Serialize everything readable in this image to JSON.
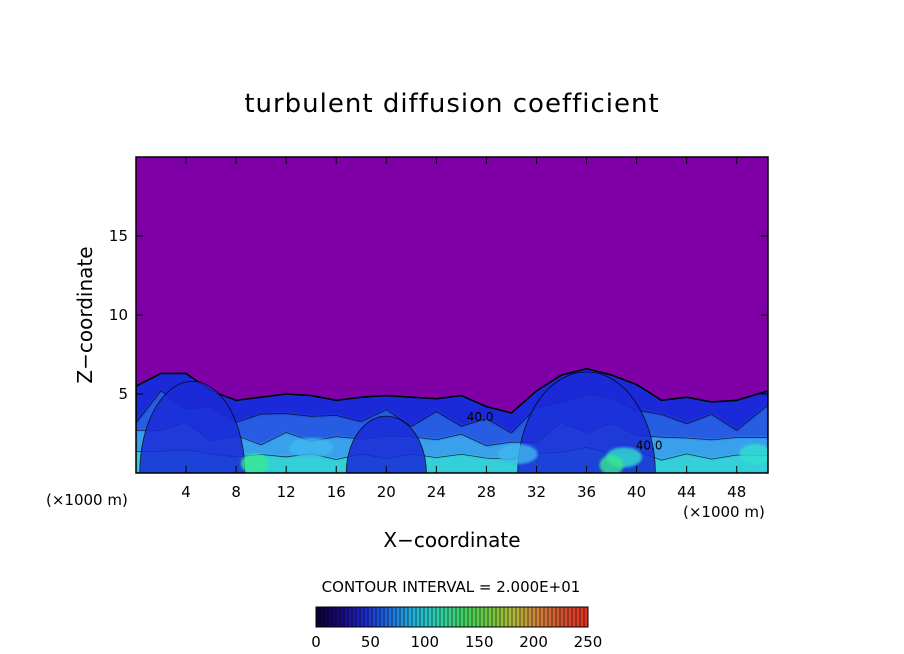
{
  "chart_data": {
    "type": "heatmap",
    "title": "turbulent diffusion coefficient",
    "xlabel": "X−coordinate",
    "ylabel": "Z−coordinate",
    "x_unit_label": "(×1000 m)",
    "y_unit_label": "(×1000 m)",
    "xlim": [
      0,
      50.5
    ],
    "ylim": [
      0,
      20
    ],
    "x_ticks": [
      4,
      8,
      12,
      16,
      20,
      24,
      28,
      32,
      36,
      40,
      44,
      48
    ],
    "y_ticks": [
      5,
      10,
      15
    ],
    "background_value": 0,
    "contour_interval_label": "CONTOUR INTERVAL = 2.000E+01",
    "contour_labels": [
      {
        "text": "40.0",
        "x": 27.5,
        "z": 3.3
      },
      {
        "text": "40.0",
        "x": 41.0,
        "z": 1.5
      }
    ],
    "boundary_layer_top": [
      [
        0,
        5.5
      ],
      [
        2,
        6.3
      ],
      [
        4,
        6.3
      ],
      [
        6,
        5.2
      ],
      [
        8,
        4.6
      ],
      [
        10,
        4.8
      ],
      [
        12,
        5.0
      ],
      [
        14,
        4.9
      ],
      [
        16,
        4.6
      ],
      [
        18,
        4.8
      ],
      [
        20,
        4.9
      ],
      [
        22,
        4.8
      ],
      [
        24,
        4.7
      ],
      [
        26,
        4.9
      ],
      [
        28,
        4.2
      ],
      [
        30,
        3.8
      ],
      [
        32,
        5.2
      ],
      [
        34,
        6.2
      ],
      [
        36,
        6.6
      ],
      [
        38,
        6.2
      ],
      [
        40,
        5.6
      ],
      [
        42,
        4.6
      ],
      [
        44,
        4.8
      ],
      [
        46,
        4.5
      ],
      [
        48,
        4.6
      ],
      [
        50.5,
        5.2
      ]
    ],
    "colorbar": {
      "min": 0,
      "max": 250,
      "ticks": [
        0,
        50,
        100,
        150,
        200,
        250
      ],
      "colors": [
        "#0a0030",
        "#1a0a78",
        "#1e2cc8",
        "#1f6fe0",
        "#22b4d8",
        "#30d0a8",
        "#40d060",
        "#70c840",
        "#b0b838",
        "#d08038",
        "#d05030",
        "#e03020"
      ]
    },
    "colors": {
      "background": "#8000a8",
      "cell_blue": "#1a2ad8",
      "cell_mid": "#2a6ee6",
      "cell_light": "#40b8f0",
      "cell_cyan": "#30e0d0",
      "cell_green": "#38e890"
    }
  }
}
